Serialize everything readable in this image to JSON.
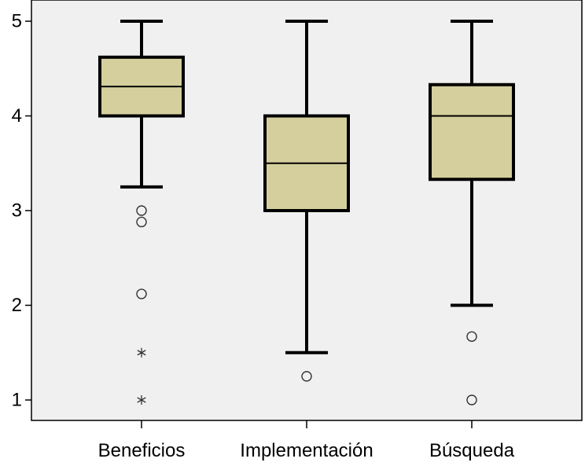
{
  "chart_data": {
    "type": "boxplot",
    "title": "",
    "xlabel": "",
    "ylabel": "",
    "ylim": [
      0.8,
      5.2
    ],
    "yticks": [
      1,
      2,
      3,
      4,
      5
    ],
    "grid": false,
    "colors": {
      "plot_background": "#f0f0f0",
      "box_fill": "#d4cf9c",
      "line": "#000000"
    },
    "categories": [
      "Beneficios",
      "Implementación",
      "Búsqueda"
    ],
    "boxes": [
      {
        "category": "Beneficios",
        "whisker_low": 3.25,
        "q1": 4.0,
        "median": 4.31,
        "q3": 4.62,
        "whisker_high": 5.0,
        "outliers": [
          3.0,
          2.88,
          2.12
        ],
        "extremes": [
          1.5,
          1.0
        ]
      },
      {
        "category": "Implementación",
        "whisker_low": 1.5,
        "q1": 3.0,
        "median": 3.5,
        "q3": 4.0,
        "whisker_high": 5.0,
        "outliers": [
          1.25
        ],
        "extremes": []
      },
      {
        "category": "Búsqueda",
        "whisker_low": 2.0,
        "q1": 3.33,
        "median": 4.0,
        "q3": 4.33,
        "whisker_high": 5.0,
        "outliers": [
          1.67,
          1.0
        ],
        "extremes": []
      }
    ]
  }
}
